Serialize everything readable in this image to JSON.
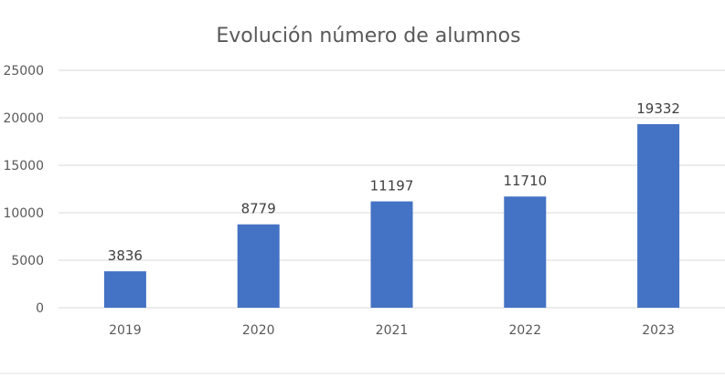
{
  "chart_data": {
    "type": "bar",
    "title": "Evolución número de alumnos",
    "categories": [
      "2019",
      "2020",
      "2021",
      "2022",
      "2023"
    ],
    "values": [
      3836,
      8779,
      11197,
      11710,
      19332
    ],
    "y_ticks": [
      "0",
      "5000",
      "10000",
      "15000",
      "20000",
      "25000"
    ],
    "ylim": [
      0,
      25000
    ],
    "grid": true,
    "legend": "none",
    "bar_color": "#4472c4"
  }
}
